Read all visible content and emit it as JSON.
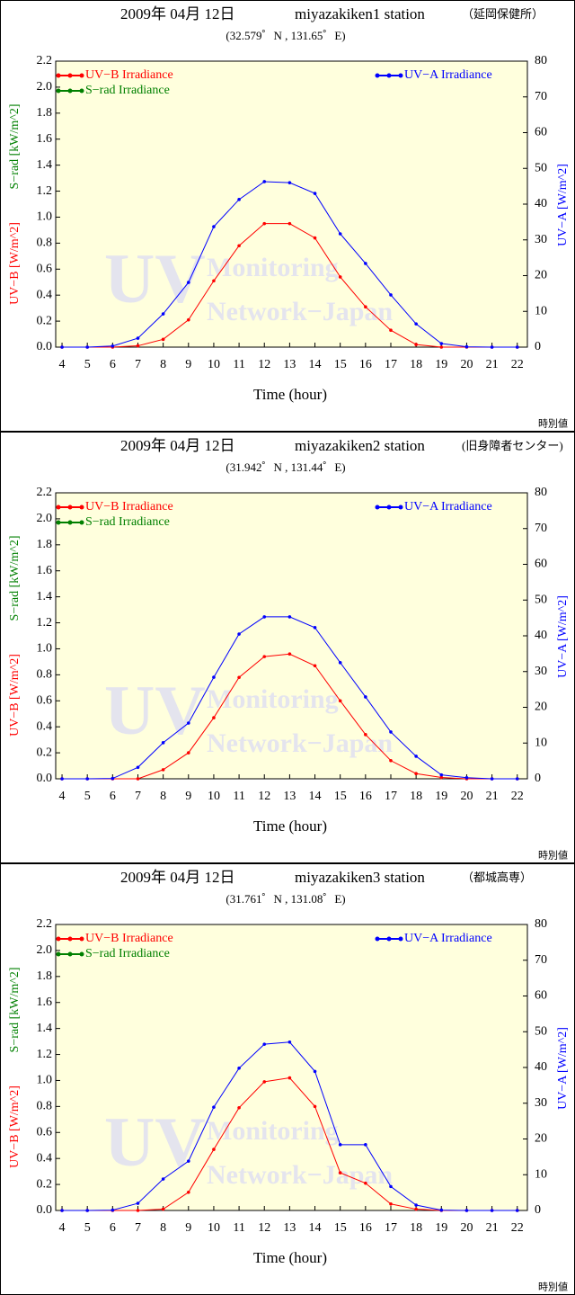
{
  "chart_data": [
    {
      "type": "line",
      "date": "2009年 04月 12日",
      "title": "miyazakiken1 station",
      "title_note": "（延岡保健所）",
      "subtitle": "(32.579゜N , 131.65゜E)",
      "xlabel": "Time (hour)",
      "ylabel": "UV−B [W/m^2]",
      "ylabel_srad": "S−rad [kW/m^2]",
      "y2label": "UV−A [W/m^2]",
      "watermark": [
        "UV",
        "Monitoring",
        "Network−Japan"
      ],
      "footnote": "時別値",
      "background": "#ffffdd",
      "x": [
        4,
        5,
        6,
        7,
        8,
        9,
        10,
        11,
        12,
        13,
        14,
        15,
        16,
        17,
        18,
        19,
        20,
        21,
        22
      ],
      "xlim": [
        3.75,
        22.4
      ],
      "xticks": [
        4,
        5,
        6,
        7,
        8,
        9,
        10,
        11,
        12,
        13,
        14,
        15,
        16,
        17,
        18,
        19,
        20,
        21,
        22
      ],
      "ylim": [
        0,
        2.2
      ],
      "yticks": [
        {
          "value": 0,
          "label": "0.0"
        },
        {
          "value": 0.2,
          "label": "0.2"
        },
        {
          "value": 0.4,
          "label": "0.4"
        },
        {
          "value": 0.6,
          "label": "0.6"
        },
        {
          "value": 0.8,
          "label": "0.8"
        },
        {
          "value": 1,
          "label": "1.0"
        },
        {
          "value": 1.2,
          "label": "1.2"
        },
        {
          "value": 1.4,
          "label": "1.4"
        },
        {
          "value": 1.6,
          "label": "1.6"
        },
        {
          "value": 1.8,
          "label": "1.8"
        },
        {
          "value": 2,
          "label": "2.0"
        },
        {
          "value": 2.2,
          "label": "2.2"
        }
      ],
      "y2lim": [
        0,
        80
      ],
      "y2ticks": [
        0,
        10,
        20,
        30,
        40,
        50,
        60,
        70,
        80
      ],
      "series": [
        {
          "name": "UV−B Irradiance",
          "color": "#ff0000",
          "values": [
            0,
            0,
            0,
            0.01,
            0.06,
            0.21,
            0.51,
            0.78,
            0.95,
            0.95,
            0.84,
            0.54,
            0.31,
            0.13,
            0.02,
            0,
            0,
            0,
            0
          ]
        },
        {
          "name": "S−rad Irradiance",
          "color": "#008000",
          "values": [
            null,
            null,
            null,
            null,
            null,
            null,
            null,
            null,
            null,
            null,
            null,
            null,
            null,
            null,
            null,
            null,
            null,
            null,
            null
          ]
        },
        {
          "name": "UV−A Irradiance",
          "color": "#0000ff",
          "axis": "y2",
          "values": [
            0,
            0,
            0.3,
            2.5,
            9.3,
            18.1,
            33.7,
            41.3,
            46.3,
            46,
            43,
            31.7,
            23.4,
            14.6,
            6.5,
            1,
            0.1,
            0,
            0
          ]
        }
      ]
    },
    {
      "type": "line",
      "date": "2009年 04月 12日",
      "title": "miyazakiken2 station",
      "title_note": "(旧身障者センター)",
      "subtitle": "(31.942゜N , 131.44゜E)",
      "xlabel": "Time (hour)",
      "ylabel": "UV−B [W/m^2]",
      "ylabel_srad": "S−rad [kW/m^2]",
      "y2label": "UV−A [W/m^2]",
      "watermark": [
        "UV",
        "Monitoring",
        "Network−Japan"
      ],
      "footnote": "時別値",
      "background": "#ffffdd",
      "x": [
        4,
        5,
        6,
        7,
        8,
        9,
        10,
        11,
        12,
        13,
        14,
        15,
        16,
        17,
        18,
        19,
        20,
        21,
        22
      ],
      "xlim": [
        3.75,
        22.4
      ],
      "xticks": [
        4,
        5,
        6,
        7,
        8,
        9,
        10,
        11,
        12,
        13,
        14,
        15,
        16,
        17,
        18,
        19,
        20,
        21,
        22
      ],
      "ylim": [
        0,
        2.2
      ],
      "yticks": [
        {
          "value": 0,
          "label": "0.0"
        },
        {
          "value": 0.2,
          "label": "0.2"
        },
        {
          "value": 0.4,
          "label": "0.4"
        },
        {
          "value": 0.6,
          "label": "0.6"
        },
        {
          "value": 0.8,
          "label": "0.8"
        },
        {
          "value": 1,
          "label": "1.0"
        },
        {
          "value": 1.2,
          "label": "1.2"
        },
        {
          "value": 1.4,
          "label": "1.4"
        },
        {
          "value": 1.6,
          "label": "1.6"
        },
        {
          "value": 1.8,
          "label": "1.8"
        },
        {
          "value": 2,
          "label": "2.0"
        },
        {
          "value": 2.2,
          "label": "2.2"
        }
      ],
      "y2lim": [
        0,
        80
      ],
      "y2ticks": [
        0,
        10,
        20,
        30,
        40,
        50,
        60,
        70,
        80
      ],
      "series": [
        {
          "name": "UV−B Irradiance",
          "color": "#ff0000",
          "values": [
            0,
            0,
            0,
            0,
            0.07,
            0.2,
            0.47,
            0.78,
            0.94,
            0.96,
            0.87,
            0.6,
            0.34,
            0.14,
            0.04,
            0.01,
            0,
            0,
            0
          ]
        },
        {
          "name": "S−rad Irradiance",
          "color": "#008000",
          "values": [
            null,
            null,
            null,
            null,
            null,
            null,
            null,
            null,
            null,
            null,
            null,
            null,
            null,
            null,
            null,
            null,
            null,
            null,
            null
          ]
        },
        {
          "name": "UV−A Irradiance",
          "color": "#0000ff",
          "axis": "y2",
          "values": [
            0,
            0,
            0.1,
            3.2,
            10.1,
            15.6,
            28.4,
            40.5,
            45.3,
            45.3,
            42.3,
            32.5,
            22.9,
            13.1,
            6.3,
            1.1,
            0.3,
            0,
            0
          ]
        }
      ]
    },
    {
      "type": "line",
      "date": "2009年 04月 12日",
      "title": "miyazakiken3 station",
      "title_note": "（都城高専）",
      "subtitle": "(31.761゜N , 131.08゜E)",
      "xlabel": "Time (hour)",
      "ylabel": "UV−B [W/m^2]",
      "ylabel_srad": "S−rad [kW/m^2]",
      "y2label": "UV−A [W/m^2]",
      "watermark": [
        "UV",
        "Monitoring",
        "Network−Japan"
      ],
      "footnote": "時別値",
      "background": "#ffffdd",
      "x": [
        4,
        5,
        6,
        7,
        8,
        9,
        10,
        11,
        12,
        13,
        14,
        15,
        16,
        17,
        18,
        19,
        20,
        21,
        22
      ],
      "xlim": [
        3.75,
        22.4
      ],
      "xticks": [
        4,
        5,
        6,
        7,
        8,
        9,
        10,
        11,
        12,
        13,
        14,
        15,
        16,
        17,
        18,
        19,
        20,
        21,
        22
      ],
      "ylim": [
        0,
        2.2
      ],
      "yticks": [
        {
          "value": 0,
          "label": "0.0"
        },
        {
          "value": 0.2,
          "label": "0.2"
        },
        {
          "value": 0.4,
          "label": "0.4"
        },
        {
          "value": 0.6,
          "label": "0.6"
        },
        {
          "value": 0.8,
          "label": "0.8"
        },
        {
          "value": 1,
          "label": "1.0"
        },
        {
          "value": 1.2,
          "label": "1.2"
        },
        {
          "value": 1.4,
          "label": "1.4"
        },
        {
          "value": 1.6,
          "label": "1.6"
        },
        {
          "value": 1.8,
          "label": "1.8"
        },
        {
          "value": 2,
          "label": "2.0"
        },
        {
          "value": 2.2,
          "label": "2.2"
        }
      ],
      "y2lim": [
        0,
        80
      ],
      "y2ticks": [
        0,
        10,
        20,
        30,
        40,
        50,
        60,
        70,
        80
      ],
      "series": [
        {
          "name": "UV−B Irradiance",
          "color": "#ff0000",
          "values": [
            0,
            0,
            0,
            0,
            0.01,
            0.14,
            0.47,
            0.79,
            0.99,
            1.02,
            0.8,
            0.29,
            0.21,
            0.05,
            0.01,
            0,
            0,
            0,
            0
          ]
        },
        {
          "name": "S−rad Irradiance",
          "color": "#008000",
          "values": [
            null,
            null,
            null,
            null,
            null,
            null,
            null,
            null,
            null,
            null,
            null,
            null,
            null,
            null,
            null,
            null,
            null,
            null,
            null
          ]
        },
        {
          "name": "UV−A Irradiance",
          "color": "#0000ff",
          "axis": "y2",
          "values": [
            0,
            0,
            0.1,
            2,
            8.8,
            13.8,
            28.9,
            39.8,
            46.5,
            47.1,
            38.9,
            18.4,
            18.4,
            6.7,
            1.5,
            0.1,
            0,
            0,
            0
          ]
        }
      ]
    }
  ]
}
